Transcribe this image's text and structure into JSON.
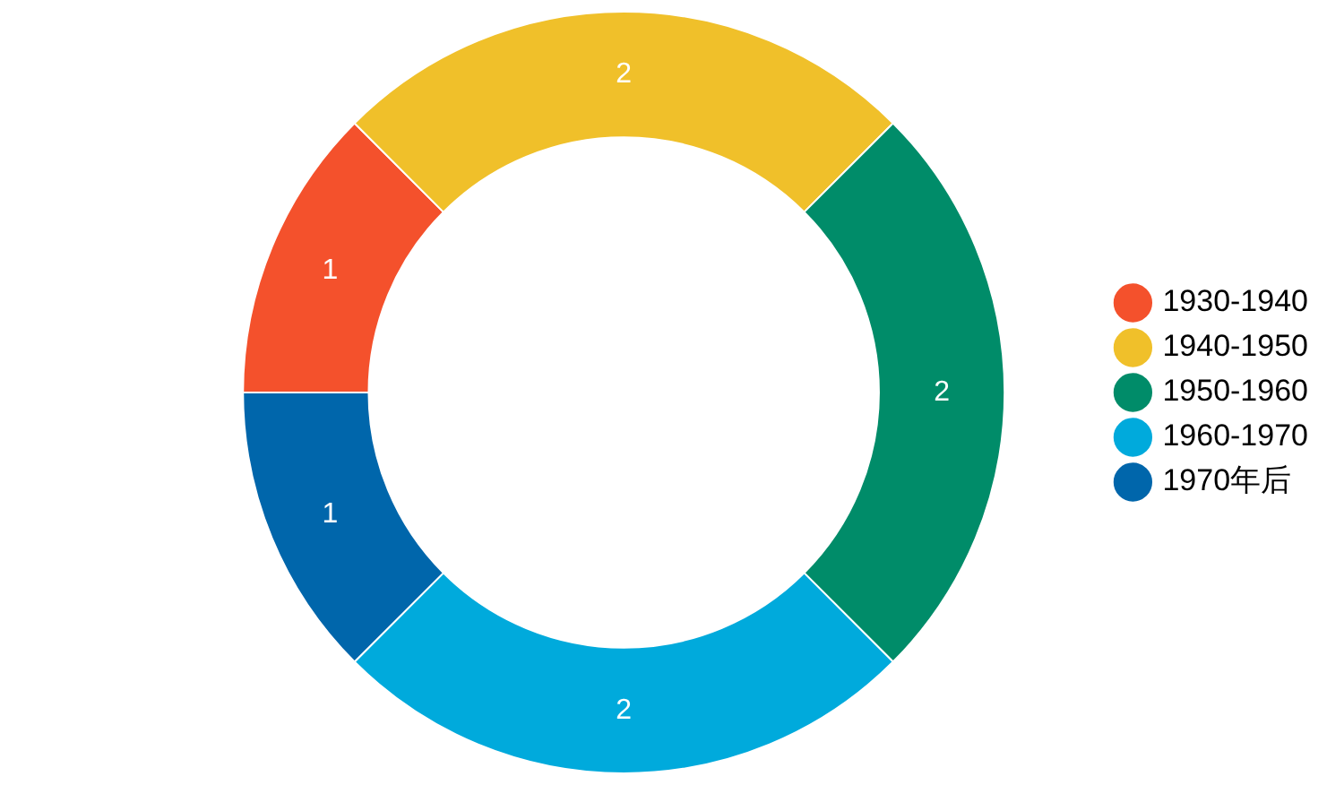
{
  "chart_data": {
    "type": "donut",
    "categories": [
      "1930-1940",
      "1940-1950",
      "1950-1960",
      "1960-1970",
      "1970年后"
    ],
    "values": [
      1,
      2,
      2,
      2,
      1
    ],
    "colors": [
      "#f4512c",
      "#f0c02a",
      "#008c69",
      "#00aadc",
      "#0066ab"
    ],
    "data_labels": true,
    "legend": "right"
  }
}
